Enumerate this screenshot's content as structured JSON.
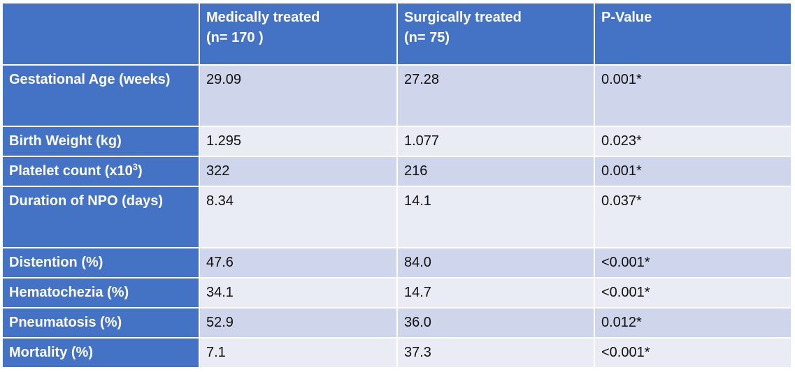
{
  "table": {
    "header": {
      "col0": "",
      "col1_line1": "Medically treated",
      "col1_line2": "(n= 170 )",
      "col2_line1": "Surgically treated",
      "col2_line2": "(n= 75)",
      "col3": "P-Value"
    },
    "rows": [
      {
        "label": "Gestational Age (weeks)",
        "medical": "29.09",
        "surgical": "27.28",
        "p": "0.001*"
      },
      {
        "label": "Birth Weight (kg)",
        "medical": "1.295",
        "surgical": "1.077",
        "p": "0.023*"
      },
      {
        "label": "Platelet count (x10",
        "label_sup": "3",
        "label_suffix": ")",
        "medical": "322",
        "surgical": "216",
        "p": "0.001*"
      },
      {
        "label": "Duration of NPO (days)",
        "medical": "8.34",
        "surgical": "14.1",
        "p": "0.037*"
      },
      {
        "label": "Distention (%)",
        "medical": "47.6",
        "surgical": "84.0",
        "p": "<0.001*"
      },
      {
        "label": "Hematochezia (%)",
        "medical": "34.1",
        "surgical": "14.7",
        "p": "<0.001*"
      },
      {
        "label": "Pneumatosis (%)",
        "medical": "52.9",
        "surgical": "36.0",
        "p": "0.012*"
      },
      {
        "label": "Mortality (%)",
        "medical": "7.1",
        "surgical": "37.3",
        "p": "<0.001*"
      }
    ]
  }
}
